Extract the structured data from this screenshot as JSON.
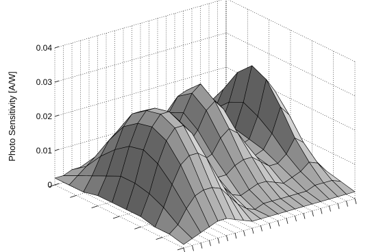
{
  "chart_data": {
    "type": "surface",
    "zlabel": "Photo Sensitivity [A/W]",
    "zlim": [
      0,
      0.04
    ],
    "z_ticks": [
      "0",
      "0.01",
      "0.02",
      "0.03",
      "0.04"
    ],
    "grid": true,
    "x_tick_count": 7,
    "y_tick_count": 21,
    "surface_color": "#b4b4b4",
    "edge_color": "#000000",
    "z_grid": [
      [
        0.002,
        0.002,
        0.003,
        0.003,
        0.003,
        0.003,
        0.003,
        0.003,
        0.004,
        0.004,
        0.005,
        0.005,
        0.005,
        0.005,
        0.004,
        0.004,
        0.006,
        0.008,
        0.011,
        0.011,
        0.007
      ],
      [
        0.002,
        0.004,
        0.006,
        0.008,
        0.009,
        0.009,
        0.008,
        0.007,
        0.007,
        0.009,
        0.012,
        0.014,
        0.014,
        0.012,
        0.009,
        0.007,
        0.008,
        0.012,
        0.017,
        0.016,
        0.009
      ],
      [
        0.002,
        0.006,
        0.011,
        0.015,
        0.017,
        0.017,
        0.015,
        0.012,
        0.011,
        0.013,
        0.018,
        0.022,
        0.023,
        0.02,
        0.014,
        0.009,
        0.01,
        0.016,
        0.024,
        0.021,
        0.01
      ],
      [
        0.003,
        0.008,
        0.015,
        0.021,
        0.024,
        0.024,
        0.021,
        0.017,
        0.014,
        0.015,
        0.02,
        0.025,
        0.027,
        0.023,
        0.016,
        0.01,
        0.011,
        0.018,
        0.028,
        0.024,
        0.011
      ],
      [
        0.003,
        0.01,
        0.018,
        0.024,
        0.027,
        0.027,
        0.024,
        0.019,
        0.015,
        0.014,
        0.017,
        0.022,
        0.024,
        0.021,
        0.015,
        0.009,
        0.01,
        0.016,
        0.026,
        0.022,
        0.01
      ],
      [
        0.003,
        0.01,
        0.019,
        0.025,
        0.028,
        0.028,
        0.025,
        0.019,
        0.014,
        0.011,
        0.012,
        0.016,
        0.018,
        0.016,
        0.012,
        0.008,
        0.009,
        0.013,
        0.02,
        0.017,
        0.008
      ],
      [
        0.003,
        0.009,
        0.017,
        0.023,
        0.026,
        0.026,
        0.023,
        0.017,
        0.011,
        0.008,
        0.008,
        0.01,
        0.011,
        0.011,
        0.009,
        0.007,
        0.007,
        0.009,
        0.013,
        0.011,
        0.006
      ],
      [
        0.002,
        0.007,
        0.013,
        0.018,
        0.02,
        0.02,
        0.018,
        0.013,
        0.008,
        0.005,
        0.004,
        0.005,
        0.006,
        0.006,
        0.005,
        0.004,
        0.005,
        0.006,
        0.008,
        0.007,
        0.004
      ],
      [
        0.002,
        0.004,
        0.008,
        0.011,
        0.012,
        0.012,
        0.011,
        0.008,
        0.005,
        0.003,
        0.002,
        0.003,
        0.003,
        0.003,
        0.003,
        0.003,
        0.003,
        0.004,
        0.004,
        0.004,
        0.003
      ],
      [
        0.001,
        0.002,
        0.003,
        0.004,
        0.005,
        0.005,
        0.004,
        0.003,
        0.002,
        0.002,
        0.002,
        0.002,
        0.002,
        0.002,
        0.002,
        0.002,
        0.002,
        0.002,
        0.002,
        0.002,
        0.002
      ]
    ]
  }
}
